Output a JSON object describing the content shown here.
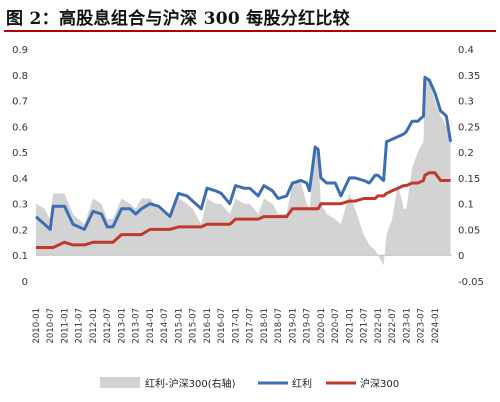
{
  "title": "图 2：高股息组合与沪深 300 每股分红比较",
  "chart_data": {
    "type": "line",
    "title": "图 2：高股息组合与沪深 300 每股分红比较",
    "x_labels": [
      "2010-01",
      "2010-07",
      "2011-01",
      "2011-07",
      "2012-01",
      "2012-07",
      "2013-01",
      "2013-07",
      "2014-01",
      "2014-07",
      "2015-01",
      "2015-07",
      "2016-01",
      "2016-07",
      "2017-01",
      "2017-07",
      "2018-01",
      "2018-07",
      "2019-01",
      "2019-07",
      "2020-01",
      "2020-07",
      "2021-01",
      "2021-07",
      "2022-01",
      "2022-07",
      "2023-01",
      "2023-07",
      "2024-01"
    ],
    "y_left": {
      "ylim": [
        0,
        0.9
      ],
      "ticks": [
        "0",
        "0.1",
        "0.2",
        "0.3",
        "0.4",
        "0.5",
        "0.6",
        "0.7",
        "0.8",
        "0.9"
      ]
    },
    "y_right": {
      "ylim": [
        -0.05,
        0.4
      ],
      "ticks": [
        "-0.05",
        "0",
        "0.05",
        "0.1",
        "0.15",
        "0.2",
        "0.25",
        "0.3",
        "0.35",
        "0.4"
      ]
    },
    "grid": false,
    "legend_position": "bottom",
    "series": [
      {
        "name": "红利-沪深300(右轴)",
        "kind": "area",
        "axis": "right",
        "color": "#d3d3d3",
        "x": [
          2010.0,
          2010.3,
          2010.5,
          2010.6,
          2011.0,
          2011.3,
          2011.5,
          2011.7,
          2012.0,
          2012.3,
          2012.5,
          2012.7,
          2013.0,
          2013.3,
          2013.5,
          2013.7,
          2014.0,
          2014.3,
          2014.5,
          2014.7,
          2015.0,
          2015.3,
          2015.5,
          2015.8,
          2016.0,
          2016.3,
          2016.5,
          2016.8,
          2017.0,
          2017.3,
          2017.5,
          2017.8,
          2018.0,
          2018.3,
          2018.5,
          2018.8,
          2019.0,
          2019.3,
          2019.5,
          2019.6,
          2019.8,
          2019.9,
          2020.0,
          2020.2,
          2020.5,
          2020.7,
          2021.0,
          2021.2,
          2021.5,
          2021.7,
          2021.9,
          2022.0,
          2022.2,
          2022.3,
          2022.5,
          2022.7,
          2022.9,
          2023.0,
          2023.2,
          2023.4,
          2023.6,
          2023.65,
          2023.8,
          2024.0,
          2024.2,
          2024.4,
          2024.55
        ],
        "values": [
          0.1,
          0.09,
          0.07,
          0.12,
          0.12,
          0.08,
          0.07,
          0.06,
          0.11,
          0.1,
          0.07,
          0.07,
          0.11,
          0.1,
          0.09,
          0.11,
          0.11,
          0.09,
          0.08,
          0.07,
          0.11,
          0.1,
          0.09,
          0.06,
          0.11,
          0.1,
          0.1,
          0.08,
          0.11,
          0.1,
          0.1,
          0.08,
          0.11,
          0.1,
          0.08,
          0.08,
          0.14,
          0.14,
          0.1,
          0.09,
          0.2,
          0.2,
          0.1,
          0.08,
          0.07,
          0.06,
          0.12,
          0.09,
          0.04,
          0.02,
          0.01,
          0.0,
          -0.02,
          0.04,
          0.07,
          0.14,
          0.09,
          0.09,
          0.17,
          0.2,
          0.22,
          0.35,
          0.34,
          0.3,
          0.27,
          0.25,
          0.22
        ]
      },
      {
        "name": "红利",
        "kind": "line",
        "axis": "left",
        "color": "#3c6eb4",
        "x": [
          2010.0,
          2010.3,
          2010.5,
          2010.6,
          2011.0,
          2011.3,
          2011.5,
          2011.7,
          2012.0,
          2012.3,
          2012.5,
          2012.7,
          2013.0,
          2013.3,
          2013.5,
          2013.7,
          2014.0,
          2014.3,
          2014.5,
          2014.7,
          2015.0,
          2015.3,
          2015.5,
          2015.8,
          2016.0,
          2016.3,
          2016.5,
          2016.8,
          2017.0,
          2017.3,
          2017.5,
          2017.8,
          2018.0,
          2018.3,
          2018.5,
          2018.8,
          2019.0,
          2019.3,
          2019.5,
          2019.6,
          2019.8,
          2019.9,
          2020.0,
          2020.2,
          2020.5,
          2020.7,
          2021.0,
          2021.2,
          2021.5,
          2021.7,
          2021.9,
          2022.0,
          2022.2,
          2022.3,
          2022.5,
          2022.7,
          2022.9,
          2023.0,
          2023.2,
          2023.4,
          2023.6,
          2023.65,
          2023.8,
          2024.0,
          2024.2,
          2024.4,
          2024.55
        ],
        "values": [
          0.25,
          0.22,
          0.2,
          0.29,
          0.29,
          0.22,
          0.21,
          0.2,
          0.27,
          0.26,
          0.21,
          0.21,
          0.28,
          0.28,
          0.26,
          0.28,
          0.3,
          0.29,
          0.27,
          0.25,
          0.34,
          0.33,
          0.31,
          0.28,
          0.36,
          0.35,
          0.34,
          0.3,
          0.37,
          0.36,
          0.36,
          0.33,
          0.37,
          0.35,
          0.32,
          0.33,
          0.38,
          0.39,
          0.38,
          0.35,
          0.52,
          0.51,
          0.4,
          0.38,
          0.38,
          0.33,
          0.4,
          0.4,
          0.39,
          0.38,
          0.41,
          0.41,
          0.39,
          0.54,
          0.55,
          0.56,
          0.57,
          0.58,
          0.62,
          0.62,
          0.64,
          0.79,
          0.78,
          0.73,
          0.66,
          0.64,
          0.54
        ]
      },
      {
        "name": "沪深300",
        "kind": "line",
        "axis": "left",
        "color": "#c0392b",
        "x": [
          2010.0,
          2010.3,
          2010.5,
          2010.6,
          2011.0,
          2011.3,
          2011.5,
          2011.7,
          2012.0,
          2012.3,
          2012.5,
          2012.7,
          2013.0,
          2013.3,
          2013.5,
          2013.7,
          2014.0,
          2014.3,
          2014.5,
          2014.7,
          2015.0,
          2015.3,
          2015.5,
          2015.8,
          2016.0,
          2016.3,
          2016.5,
          2016.8,
          2017.0,
          2017.3,
          2017.5,
          2017.8,
          2018.0,
          2018.3,
          2018.5,
          2018.8,
          2019.0,
          2019.3,
          2019.5,
          2019.6,
          2019.8,
          2019.9,
          2020.0,
          2020.2,
          2020.5,
          2020.7,
          2021.0,
          2021.2,
          2021.5,
          2021.7,
          2021.9,
          2022.0,
          2022.2,
          2022.3,
          2022.5,
          2022.7,
          2022.9,
          2023.0,
          2023.2,
          2023.4,
          2023.6,
          2023.65,
          2023.8,
          2024.0,
          2024.2,
          2024.4,
          2024.55
        ],
        "values": [
          0.13,
          0.13,
          0.13,
          0.13,
          0.15,
          0.14,
          0.14,
          0.14,
          0.15,
          0.15,
          0.15,
          0.15,
          0.18,
          0.18,
          0.18,
          0.18,
          0.2,
          0.2,
          0.2,
          0.2,
          0.21,
          0.21,
          0.21,
          0.21,
          0.22,
          0.22,
          0.22,
          0.22,
          0.24,
          0.24,
          0.24,
          0.24,
          0.25,
          0.25,
          0.25,
          0.25,
          0.28,
          0.28,
          0.28,
          0.28,
          0.28,
          0.28,
          0.3,
          0.3,
          0.3,
          0.3,
          0.31,
          0.31,
          0.32,
          0.32,
          0.32,
          0.33,
          0.33,
          0.34,
          0.35,
          0.36,
          0.37,
          0.37,
          0.38,
          0.38,
          0.39,
          0.41,
          0.42,
          0.42,
          0.39,
          0.39,
          0.39
        ]
      }
    ]
  }
}
